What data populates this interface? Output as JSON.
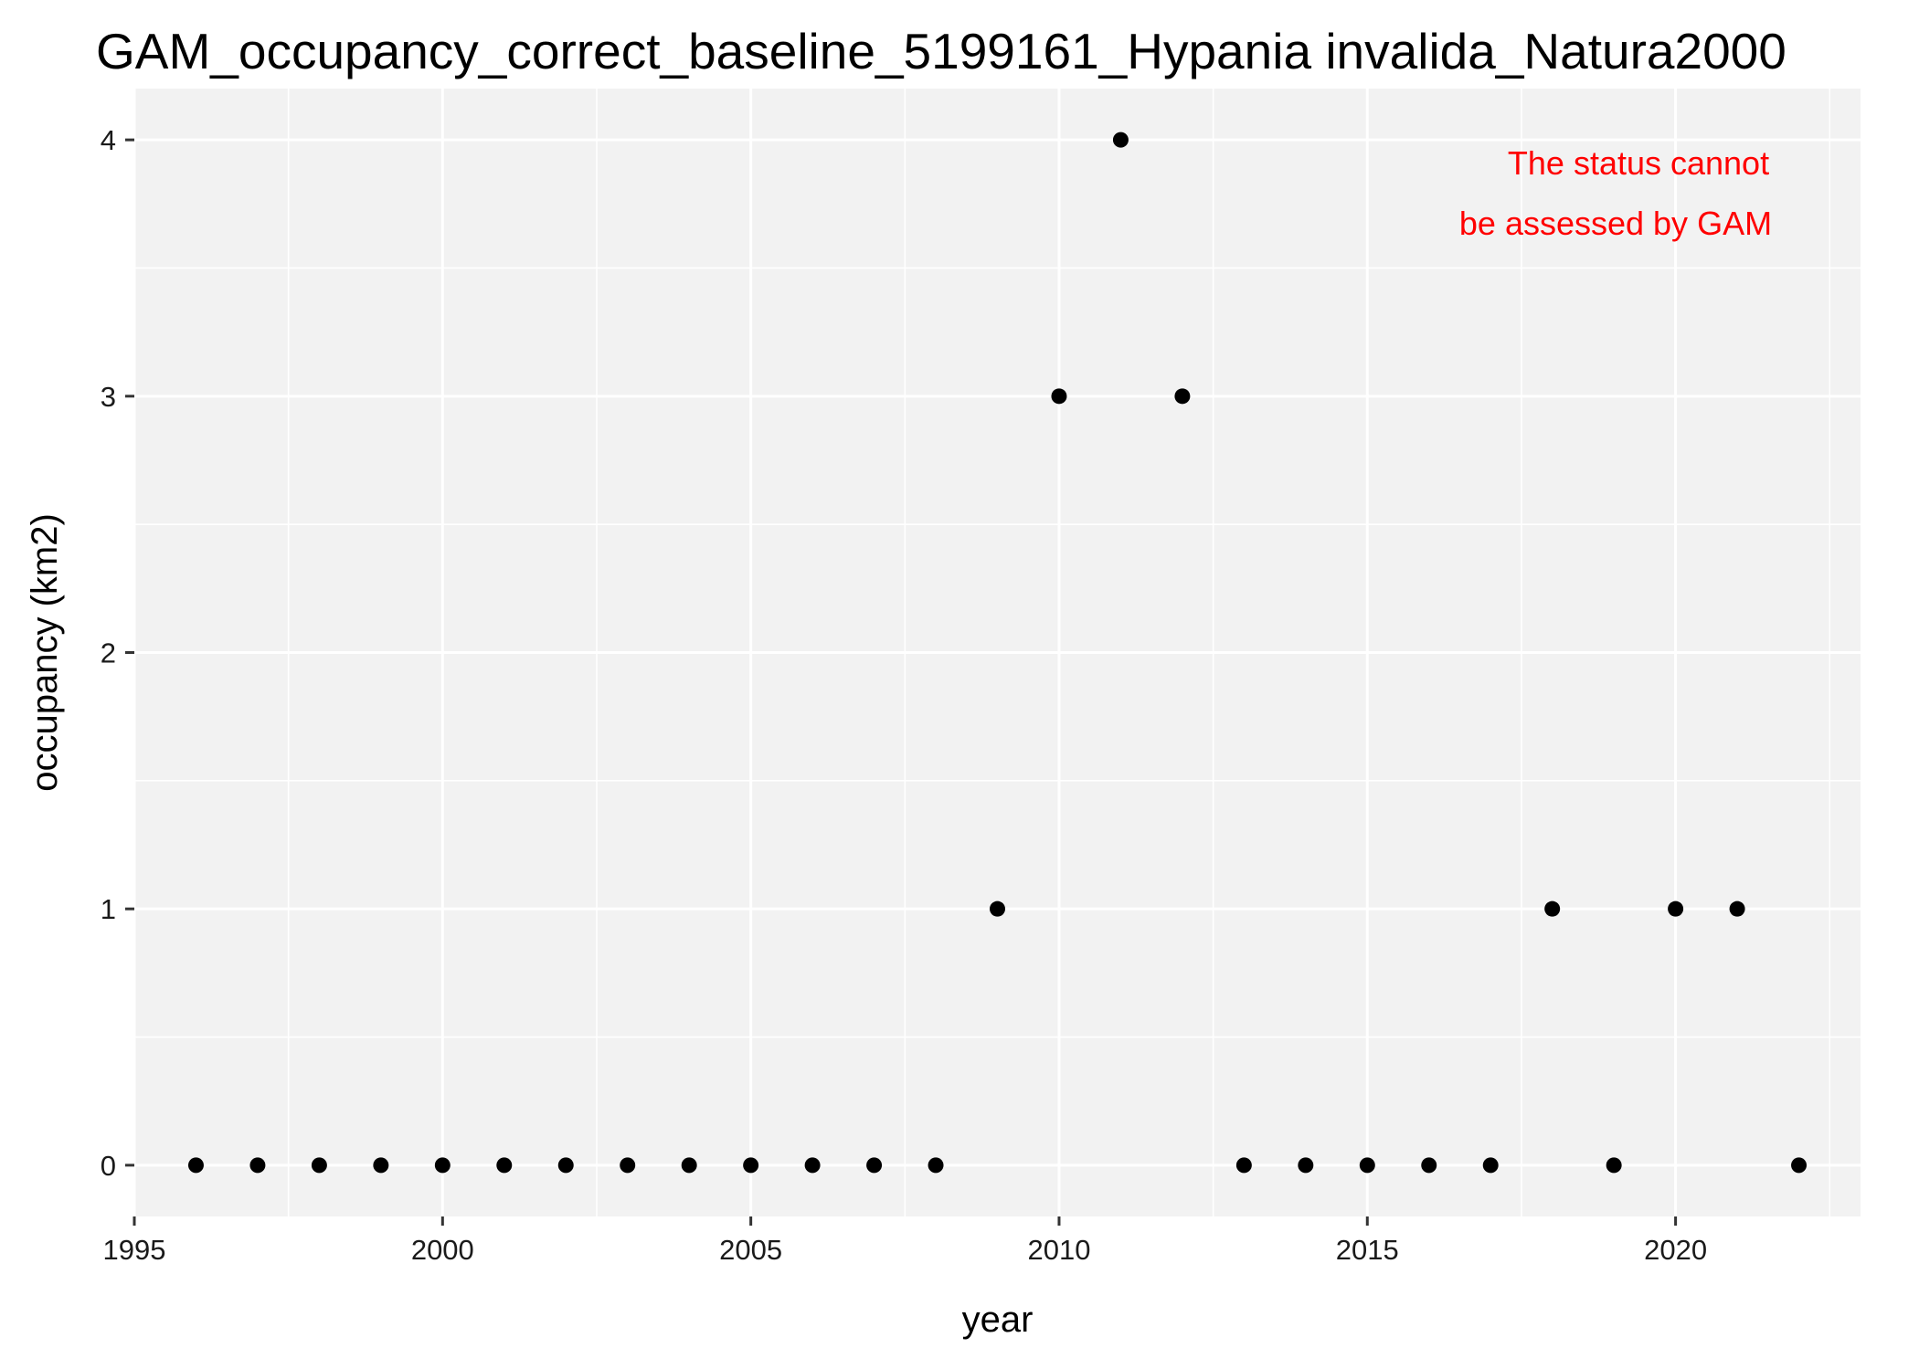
{
  "chart_data": {
    "type": "scatter",
    "title": "GAM_occupancy_correct_baseline_5199161_Hypania invalida_Natura2000",
    "xlabel": "year",
    "ylabel": "occupancy (km2)",
    "xlim": [
      1995,
      2023
    ],
    "ylim": [
      -0.2,
      4.2
    ],
    "x_ticks": [
      1995,
      2000,
      2005,
      2010,
      2015,
      2020
    ],
    "y_ticks": [
      0,
      1,
      2,
      3,
      4
    ],
    "x_tick_labels": [
      "1995",
      "2000",
      "2005",
      "2010",
      "2015",
      "2020"
    ],
    "y_tick_labels": [
      "0",
      "1",
      "2",
      "3",
      "4"
    ],
    "grid": true,
    "panel_background": "#f2f2f2",
    "grid_color": "#ffffff",
    "point_color": "#000000",
    "annotation": {
      "lines": [
        "The status cannot",
        "be assessed by GAM"
      ],
      "color": "#ff0000",
      "position": "top-right"
    },
    "x": [
      1996,
      1997,
      1998,
      1999,
      2000,
      2001,
      2002,
      2003,
      2004,
      2005,
      2006,
      2007,
      2008,
      2009,
      2010,
      2011,
      2012,
      2013,
      2014,
      2015,
      2016,
      2017,
      2018,
      2019,
      2020,
      2021,
      2022
    ],
    "y": [
      0,
      0,
      0,
      0,
      0,
      0,
      0,
      0,
      0,
      0,
      0,
      0,
      0,
      1,
      3,
      4,
      3,
      0,
      0,
      0,
      0,
      0,
      1,
      0,
      1,
      1,
      0
    ]
  }
}
